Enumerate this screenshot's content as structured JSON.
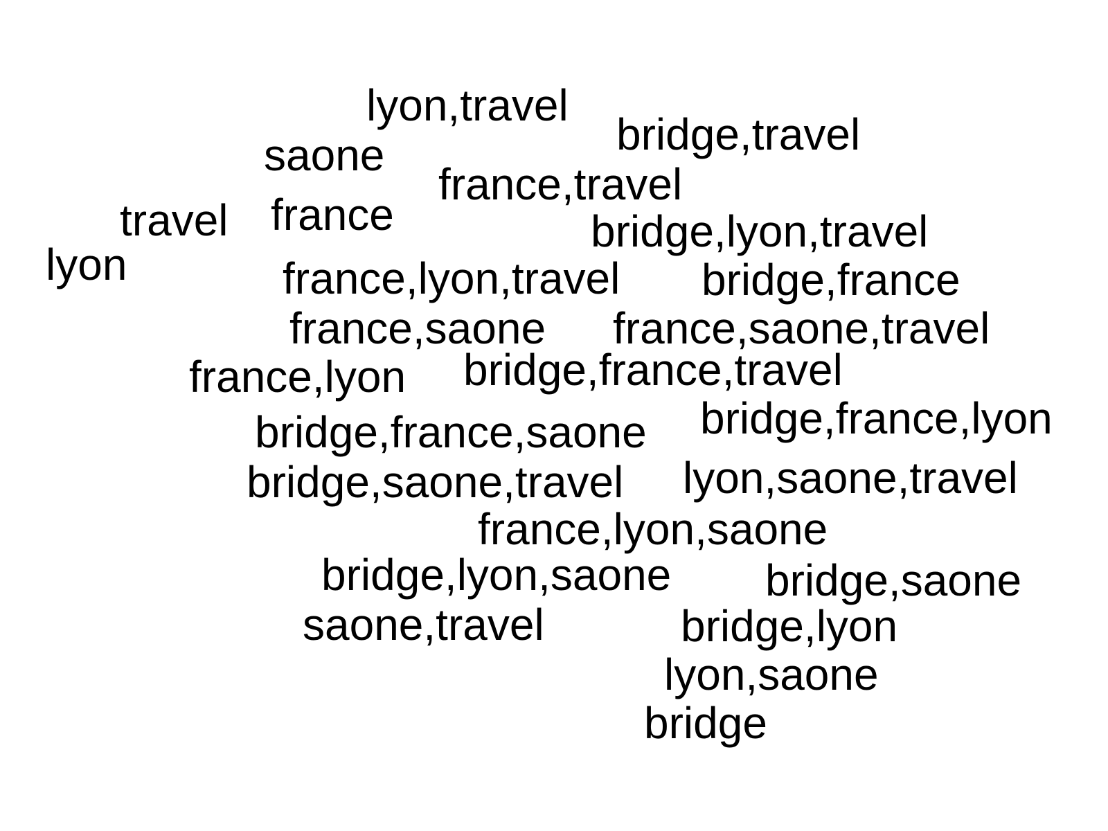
{
  "words": [
    "lyon,travel",
    "bridge,travel",
    "saone",
    "france,travel",
    "travel",
    "france",
    "bridge,lyon,travel",
    "lyon",
    "france,lyon,travel",
    "bridge,france",
    "france,saone",
    "france,saone,travel",
    "bridge,france,travel",
    "france,lyon",
    "bridge,france,lyon",
    "bridge,france,saone",
    "bridge,saone,travel",
    "lyon,saone,travel",
    "france,lyon,saone",
    "bridge,lyon,saone",
    "bridge,saone",
    "saone,travel",
    "bridge,lyon",
    "lyon,saone",
    "bridge"
  ],
  "colors": {
    "text": "#000000",
    "background": "#ffffff"
  }
}
